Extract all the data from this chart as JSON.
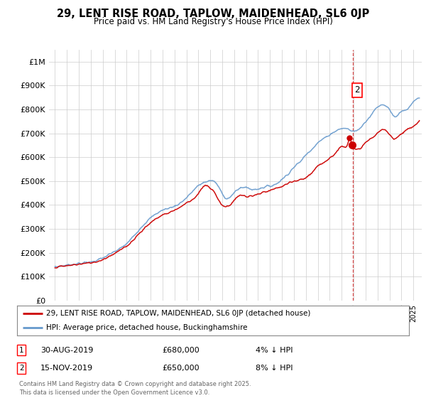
{
  "title": "29, LENT RISE ROAD, TAPLOW, MAIDENHEAD, SL6 0JP",
  "subtitle": "Price paid vs. HM Land Registry's House Price Index (HPI)",
  "ylabel_ticks": [
    "£0",
    "£100K",
    "£200K",
    "£300K",
    "£400K",
    "£500K",
    "£600K",
    "£700K",
    "£800K",
    "£900K",
    "£1M"
  ],
  "ytick_values": [
    0,
    100000,
    200000,
    300000,
    400000,
    500000,
    600000,
    700000,
    800000,
    900000,
    1000000
  ],
  "ylim": [
    0,
    1050000
  ],
  "xlim_start": 1994.5,
  "xlim_end": 2025.7,
  "hpi_color": "#6699cc",
  "price_color": "#cc0000",
  "legend_label_price": "29, LENT RISE ROAD, TAPLOW, MAIDENHEAD, SL6 0JP (detached house)",
  "legend_label_hpi": "HPI: Average price, detached house, Buckinghamshire",
  "sale1_date": 2019.66,
  "sale1_price": 680000,
  "sale2_date": 2019.88,
  "sale2_price": 650000,
  "dashed_line_x": 2019.92,
  "footer": "Contains HM Land Registry data © Crown copyright and database right 2025.\nThis data is licensed under the Open Government Licence v3.0.",
  "background_color": "#ffffff",
  "plot_background": "#ffffff"
}
